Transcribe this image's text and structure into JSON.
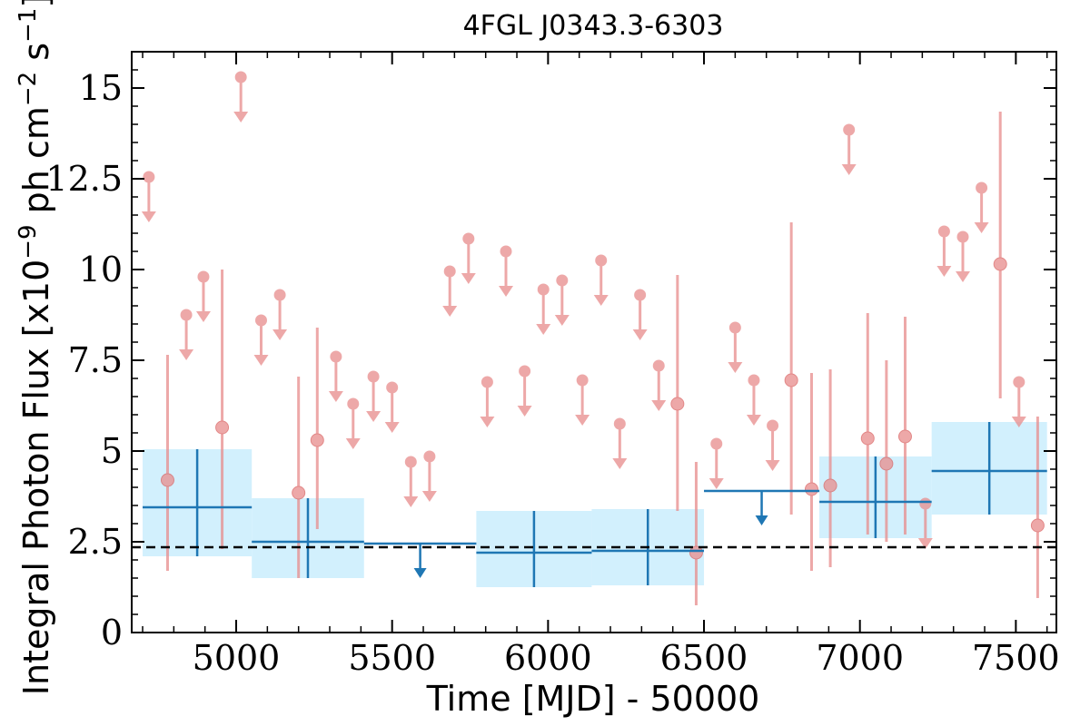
{
  "chart_data": {
    "type": "scatter",
    "title": "4FGL J0343.3-6303",
    "xlabel": "Time [MJD] - 50000",
    "ylabel_main": "Integral Photon Flux [x10",
    "ylabel_exp1": "−9",
    "ylabel_mid": " ph cm",
    "ylabel_exp2": "−2",
    "ylabel_mid2": " s",
    "ylabel_exp3": "−1",
    "ylabel_end": "]",
    "xlim": [
      4665,
      7630
    ],
    "ylim": [
      0,
      16
    ],
    "xticks": [
      5000,
      5500,
      6000,
      6500,
      7000,
      7500
    ],
    "xtick_labels": [
      "5000",
      "5500",
      "6000",
      "6500",
      "7000",
      "7500"
    ],
    "yticks": [
      0,
      2.5,
      5,
      7.5,
      10,
      12.5,
      15
    ],
    "ytick_labels": [
      "0",
      "2.5",
      "5",
      "7.5",
      "10",
      "12.5",
      "15"
    ],
    "reference_level": 2.35,
    "colors": {
      "short_bins": "#e88c8c",
      "long_bins": "#1f77b4",
      "long_band": "#cdeefd",
      "reference": "#000000"
    },
    "long_bins": [
      {
        "x0": 4700,
        "x1": 5050,
        "y": 3.45,
        "ylo": 2.1,
        "yhi": 5.05,
        "upper_limit": false
      },
      {
        "x0": 5050,
        "x1": 5410,
        "y": 2.5,
        "ylo": 1.5,
        "yhi": 3.7,
        "upper_limit": false
      },
      {
        "x0": 5410,
        "x1": 5770,
        "y": 2.45,
        "upper_limit": true
      },
      {
        "x0": 5770,
        "x1": 6140,
        "y": 2.2,
        "ylo": 1.25,
        "yhi": 3.35,
        "upper_limit": false
      },
      {
        "x0": 6140,
        "x1": 6500,
        "y": 2.25,
        "ylo": 1.3,
        "yhi": 3.4,
        "upper_limit": false
      },
      {
        "x0": 6500,
        "x1": 6870,
        "y": 3.9,
        "upper_limit": true
      },
      {
        "x0": 6870,
        "x1": 7230,
        "y": 3.6,
        "ylo": 2.6,
        "yhi": 4.85,
        "upper_limit": false
      },
      {
        "x0": 7230,
        "x1": 7600,
        "y": 4.45,
        "ylo": 3.25,
        "yhi": 5.8,
        "upper_limit": false
      }
    ],
    "short_bins": [
      {
        "x": 4720,
        "y": 12.55,
        "upper_limit": true
      },
      {
        "x": 4780,
        "y": 4.2,
        "ylo": 1.7,
        "yhi": 7.65,
        "upper_limit": false
      },
      {
        "x": 4840,
        "y": 8.75,
        "upper_limit": true
      },
      {
        "x": 4895,
        "y": 9.8,
        "upper_limit": true
      },
      {
        "x": 4955,
        "y": 5.65,
        "ylo": 2.3,
        "yhi": 10.0,
        "upper_limit": false
      },
      {
        "x": 5015,
        "y": 15.3,
        "upper_limit": true
      },
      {
        "x": 5080,
        "y": 8.6,
        "upper_limit": true
      },
      {
        "x": 5140,
        "y": 9.3,
        "upper_limit": true
      },
      {
        "x": 5200,
        "y": 3.85,
        "ylo": 1.5,
        "yhi": 7.05,
        "upper_limit": false
      },
      {
        "x": 5260,
        "y": 5.3,
        "ylo": 2.85,
        "yhi": 8.4,
        "upper_limit": false
      },
      {
        "x": 5320,
        "y": 7.6,
        "upper_limit": true
      },
      {
        "x": 5375,
        "y": 6.3,
        "upper_limit": true
      },
      {
        "x": 5440,
        "y": 7.05,
        "upper_limit": true
      },
      {
        "x": 5500,
        "y": 6.75,
        "upper_limit": true
      },
      {
        "x": 5560,
        "y": 4.7,
        "upper_limit": true
      },
      {
        "x": 5620,
        "y": 4.85,
        "upper_limit": true
      },
      {
        "x": 5685,
        "y": 9.95,
        "upper_limit": true
      },
      {
        "x": 5745,
        "y": 10.85,
        "upper_limit": true
      },
      {
        "x": 5805,
        "y": 6.9,
        "upper_limit": true
      },
      {
        "x": 5865,
        "y": 10.5,
        "upper_limit": true
      },
      {
        "x": 5925,
        "y": 7.2,
        "upper_limit": true
      },
      {
        "x": 5985,
        "y": 9.45,
        "upper_limit": true
      },
      {
        "x": 6045,
        "y": 9.7,
        "upper_limit": true
      },
      {
        "x": 6110,
        "y": 6.95,
        "upper_limit": true
      },
      {
        "x": 6170,
        "y": 10.25,
        "upper_limit": true
      },
      {
        "x": 6230,
        "y": 5.75,
        "upper_limit": true
      },
      {
        "x": 6295,
        "y": 9.3,
        "upper_limit": true
      },
      {
        "x": 6355,
        "y": 7.35,
        "upper_limit": true
      },
      {
        "x": 6415,
        "y": 6.3,
        "ylo": 3.35,
        "yhi": 9.85,
        "upper_limit": false
      },
      {
        "x": 6475,
        "y": 2.2,
        "ylo": 0.75,
        "yhi": 4.7,
        "upper_limit": false
      },
      {
        "x": 6540,
        "y": 5.2,
        "upper_limit": true
      },
      {
        "x": 6600,
        "y": 8.4,
        "upper_limit": true
      },
      {
        "x": 6660,
        "y": 6.95,
        "upper_limit": true
      },
      {
        "x": 6720,
        "y": 5.7,
        "upper_limit": true
      },
      {
        "x": 6780,
        "y": 6.95,
        "ylo": 3.25,
        "yhi": 11.3,
        "upper_limit": false
      },
      {
        "x": 6845,
        "y": 3.95,
        "ylo": 1.7,
        "yhi": 7.15,
        "upper_limit": false
      },
      {
        "x": 6905,
        "y": 4.05,
        "ylo": 1.8,
        "yhi": 7.25,
        "upper_limit": false
      },
      {
        "x": 6965,
        "y": 13.85,
        "upper_limit": true
      },
      {
        "x": 7025,
        "y": 5.35,
        "ylo": 2.7,
        "yhi": 8.8,
        "upper_limit": false
      },
      {
        "x": 7085,
        "y": 4.65,
        "ylo": 2.5,
        "yhi": 7.5,
        "upper_limit": false
      },
      {
        "x": 7145,
        "y": 5.4,
        "ylo": 2.7,
        "yhi": 8.7,
        "upper_limit": false
      },
      {
        "x": 7210,
        "y": 3.55,
        "upper_limit": true
      },
      {
        "x": 7270,
        "y": 11.05,
        "upper_limit": true
      },
      {
        "x": 7330,
        "y": 10.9,
        "upper_limit": true
      },
      {
        "x": 7390,
        "y": 12.25,
        "upper_limit": true
      },
      {
        "x": 7450,
        "y": 10.15,
        "ylo": 6.45,
        "yhi": 14.35,
        "upper_limit": false
      },
      {
        "x": 7510,
        "y": 6.9,
        "upper_limit": true
      },
      {
        "x": 7570,
        "y": 2.95,
        "ylo": 0.95,
        "yhi": 5.95,
        "upper_limit": false
      }
    ]
  }
}
